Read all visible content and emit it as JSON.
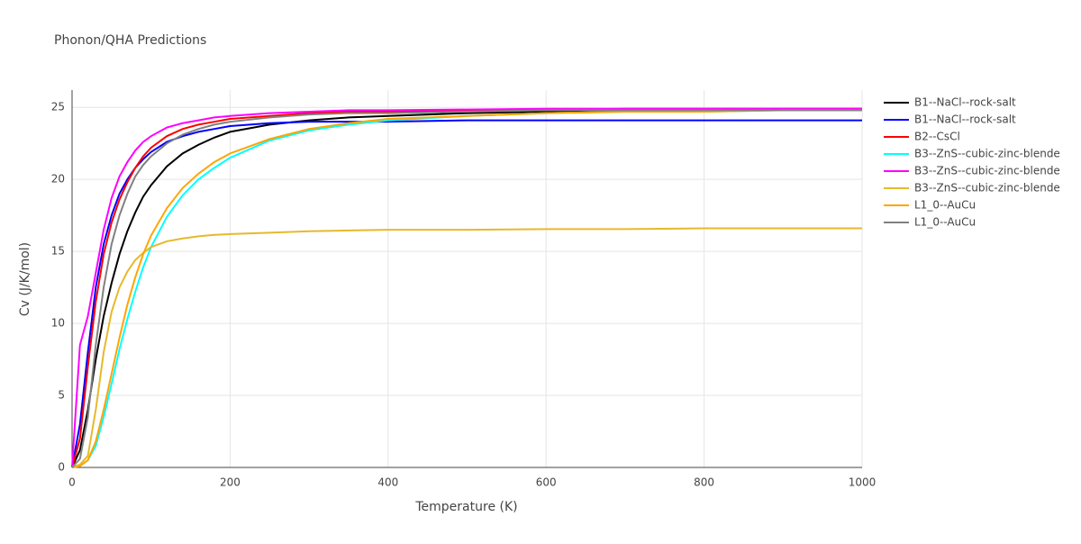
{
  "chart_data": {
    "type": "line",
    "title": "Phonon/QHA Predictions",
    "xlabel": "Temperature (K)",
    "ylabel": "Cv (J/K/mol)",
    "x": [
      0,
      10,
      20,
      30,
      40,
      50,
      60,
      70,
      80,
      90,
      100,
      120,
      140,
      160,
      180,
      200,
      250,
      300,
      350,
      400,
      500,
      600,
      700,
      800,
      900,
      1000
    ],
    "series": [
      {
        "name": "B1--NaCl--rock-salt",
        "color": "#000000",
        "values": [
          0,
          1.2,
          4,
          7.5,
          10.5,
          12.8,
          14.8,
          16.4,
          17.7,
          18.8,
          19.6,
          20.9,
          21.8,
          22.4,
          22.9,
          23.3,
          23.8,
          24.1,
          24.3,
          24.4,
          24.6,
          24.7,
          24.7,
          24.8,
          24.8,
          24.8
        ]
      },
      {
        "name": "B1--NaCl--rock-salt",
        "color": "#0000ff",
        "values": [
          0,
          3,
          8,
          12.5,
          15.5,
          17.5,
          19,
          20,
          20.8,
          21.4,
          21.9,
          22.6,
          23,
          23.3,
          23.5,
          23.7,
          23.9,
          24,
          24,
          24,
          24.1,
          24.1,
          24.1,
          24.1,
          24.1,
          24.1
        ]
      },
      {
        "name": "B2--CsCl",
        "color": "#ff0000",
        "values": [
          0,
          2,
          7,
          11.5,
          14.8,
          17,
          18.6,
          19.8,
          20.8,
          21.6,
          22.2,
          23,
          23.5,
          23.8,
          24,
          24.2,
          24.4,
          24.6,
          24.7,
          24.7,
          24.8,
          24.8,
          24.9,
          24.9,
          24.9,
          24.9
        ]
      },
      {
        "name": "B3--ZnS--cubic-zinc-blende",
        "color": "#00ffff",
        "values": [
          0,
          0.1,
          0.5,
          1.5,
          3.5,
          5.8,
          8.2,
          10.3,
          12.2,
          13.9,
          15.3,
          17.4,
          18.9,
          20,
          20.8,
          21.5,
          22.7,
          23.4,
          23.8,
          24.1,
          24.4,
          24.6,
          24.7,
          24.7,
          24.8,
          24.8
        ]
      },
      {
        "name": "B3--ZnS--cubic-zinc-blende",
        "color": "#ff00ff",
        "values": [
          0,
          8.5,
          10.5,
          13.5,
          16.5,
          18.7,
          20.2,
          21.2,
          22,
          22.6,
          23,
          23.6,
          23.9,
          24.1,
          24.3,
          24.4,
          24.6,
          24.7,
          24.8,
          24.8,
          24.85,
          24.9,
          24.9,
          24.9,
          24.9,
          24.9
        ]
      },
      {
        "name": "B3--ZnS--cubic-zinc-blende",
        "color": "#e6b92c",
        "values": [
          0,
          0.2,
          0.8,
          4,
          8,
          10.8,
          12.5,
          13.6,
          14.4,
          14.9,
          15.3,
          15.7,
          15.9,
          16.05,
          16.15,
          16.2,
          16.3,
          16.4,
          16.45,
          16.5,
          16.5,
          16.55,
          16.55,
          16.6,
          16.6,
          16.6
        ]
      },
      {
        "name": "L1_0--AuCu",
        "color": "#ffa500",
        "values": [
          0,
          0.1,
          0.5,
          1.8,
          4,
          6.5,
          9,
          11.3,
          13.2,
          14.8,
          16.1,
          18,
          19.4,
          20.4,
          21.2,
          21.8,
          22.8,
          23.5,
          23.9,
          24.2,
          24.4,
          24.6,
          24.7,
          24.7,
          24.8,
          24.8
        ]
      },
      {
        "name": "L1_0--AuCu",
        "color": "#808080",
        "values": [
          0,
          0.6,
          3.5,
          8.5,
          12.5,
          15.5,
          17.5,
          19,
          20.2,
          21,
          21.6,
          22.5,
          23.1,
          23.5,
          23.8,
          24,
          24.3,
          24.5,
          24.6,
          24.6,
          24.7,
          24.8,
          24.8,
          24.8,
          24.8,
          24.8
        ]
      }
    ],
    "xlim": [
      0,
      1000
    ],
    "xticks": [
      0,
      200,
      400,
      600,
      800,
      1000
    ],
    "ylim": [
      0,
      26.2
    ],
    "yticks": [
      0,
      5,
      10,
      15,
      20,
      25
    ],
    "grid": true
  }
}
